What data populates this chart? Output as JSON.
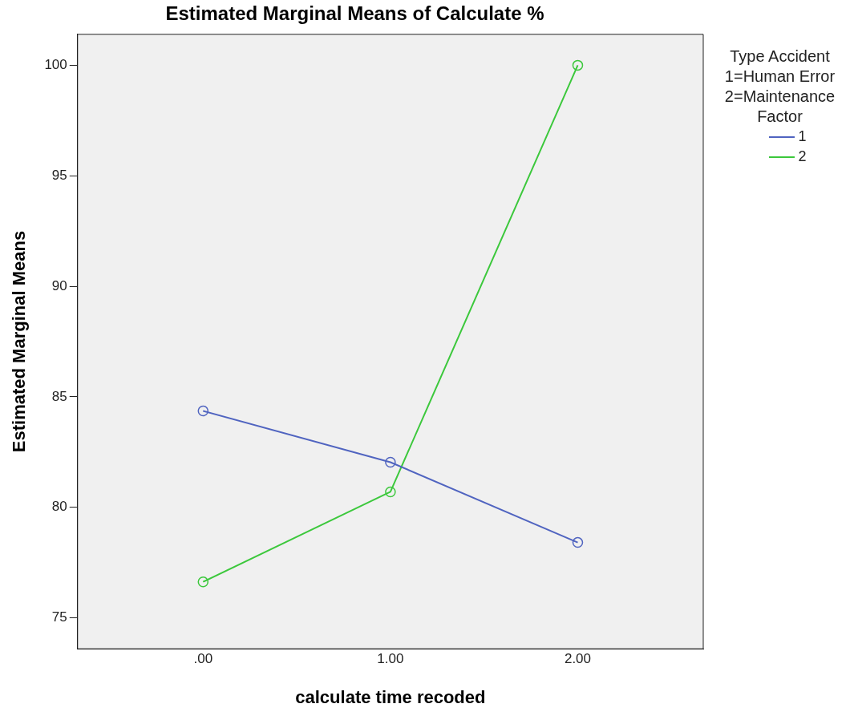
{
  "chart_data": {
    "type": "line",
    "title": "Estimated Marginal Means of Calculate %",
    "xlabel": "calculate time recoded",
    "ylabel": "Estimated Marginal Means",
    "legend_title": "Type Accident\n1=Human Error\n2=Maintenance\nFactor",
    "x": [
      0,
      1,
      2
    ],
    "xlim": [
      -0.67,
      2.67
    ],
    "xticks": [
      {
        "value": 0,
        "label": ".00"
      },
      {
        "value": 1,
        "label": "1.00"
      },
      {
        "value": 2,
        "label": "2.00"
      }
    ],
    "ylim": [
      73.6,
      101.4
    ],
    "yticks": [
      75,
      80,
      85,
      90,
      95,
      100
    ],
    "series": [
      {
        "name": "1",
        "color": "#5064c0",
        "values": [
          84.36,
          82.04,
          78.41
        ]
      },
      {
        "name": "2",
        "color": "#3cc83c",
        "values": [
          76.63,
          80.7,
          100
        ]
      }
    ],
    "marker": "circle",
    "line_style": "solid",
    "grid": false,
    "legend": "right"
  }
}
